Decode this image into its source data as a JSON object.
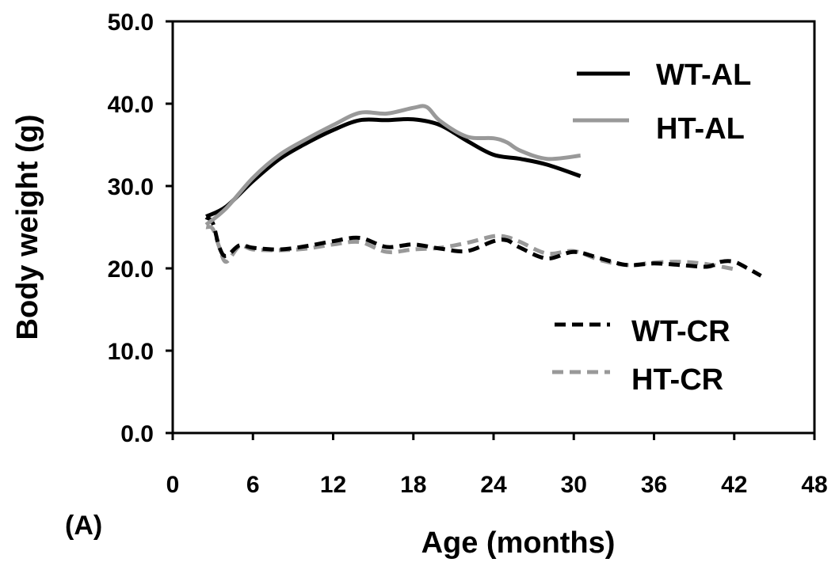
{
  "chart_data": {
    "type": "line",
    "panel_label": "(A)",
    "xlabel": "Age (months)",
    "ylabel": "Body weight (g)",
    "xlim": [
      0,
      48
    ],
    "ylim": [
      0,
      50
    ],
    "xticks": [
      "0",
      "6",
      "12",
      "18",
      "24",
      "30",
      "36",
      "42",
      "48"
    ],
    "yticks": [
      "0.0",
      "10.0",
      "20.0",
      "30.0",
      "40.0",
      "50.0"
    ],
    "grid": false,
    "legend_placement": "top-right (AL) and middle-right (CR)",
    "series": [
      {
        "name": "WT-AL",
        "color": "#000000",
        "dashed": false,
        "x": [
          2.5,
          4,
          6,
          8,
          10,
          12,
          14,
          16,
          18,
          20,
          22,
          24,
          26,
          28,
          30.5
        ],
        "y": [
          26.3,
          27.5,
          30.6,
          33.3,
          35.2,
          36.8,
          38.0,
          38.0,
          38.1,
          37.4,
          35.5,
          33.8,
          33.3,
          32.6,
          31.2
        ]
      },
      {
        "name": "HT-AL",
        "color": "#999999",
        "dashed": false,
        "x": [
          2.5,
          4,
          6,
          8,
          10,
          12,
          14,
          16,
          18,
          19,
          20,
          22,
          24,
          25,
          26,
          28,
          30.5
        ],
        "y": [
          25.3,
          27.3,
          31.0,
          33.8,
          35.7,
          37.4,
          38.9,
          38.8,
          39.5,
          39.6,
          37.9,
          36.0,
          35.8,
          35.3,
          34.3,
          33.3,
          33.7
        ]
      },
      {
        "name": "WT-CR",
        "color": "#000000",
        "dashed": true,
        "x": [
          2.5,
          3,
          3.5,
          4,
          5,
          6,
          8,
          10,
          12,
          14,
          16,
          18,
          20,
          22,
          24,
          25,
          26,
          28,
          30,
          32,
          34,
          36,
          38,
          40,
          41,
          42,
          43,
          44
        ],
        "y": [
          26.2,
          25.5,
          22.5,
          21.5,
          22.8,
          22.5,
          22.3,
          22.7,
          23.3,
          23.7,
          22.6,
          22.9,
          22.4,
          22.1,
          23.3,
          23.4,
          22.5,
          21.2,
          22.0,
          21.2,
          20.4,
          20.6,
          20.4,
          20.2,
          20.8,
          20.8,
          20.0,
          19.1
        ]
      },
      {
        "name": "HT-CR",
        "color": "#999999",
        "dashed": true,
        "x": [
          2.5,
          3,
          3.5,
          4,
          5,
          6,
          8,
          10,
          12,
          14,
          16,
          18,
          20,
          22,
          24,
          25,
          26,
          28,
          30,
          32,
          34,
          36,
          38,
          40,
          42
        ],
        "y": [
          25.0,
          24.8,
          22.5,
          20.8,
          22.7,
          22.3,
          22.2,
          22.4,
          22.9,
          23.2,
          22.0,
          22.3,
          22.5,
          23.1,
          23.9,
          23.8,
          23.2,
          21.8,
          22.1,
          21.0,
          20.4,
          20.7,
          20.8,
          20.5,
          19.9
        ]
      }
    ]
  }
}
